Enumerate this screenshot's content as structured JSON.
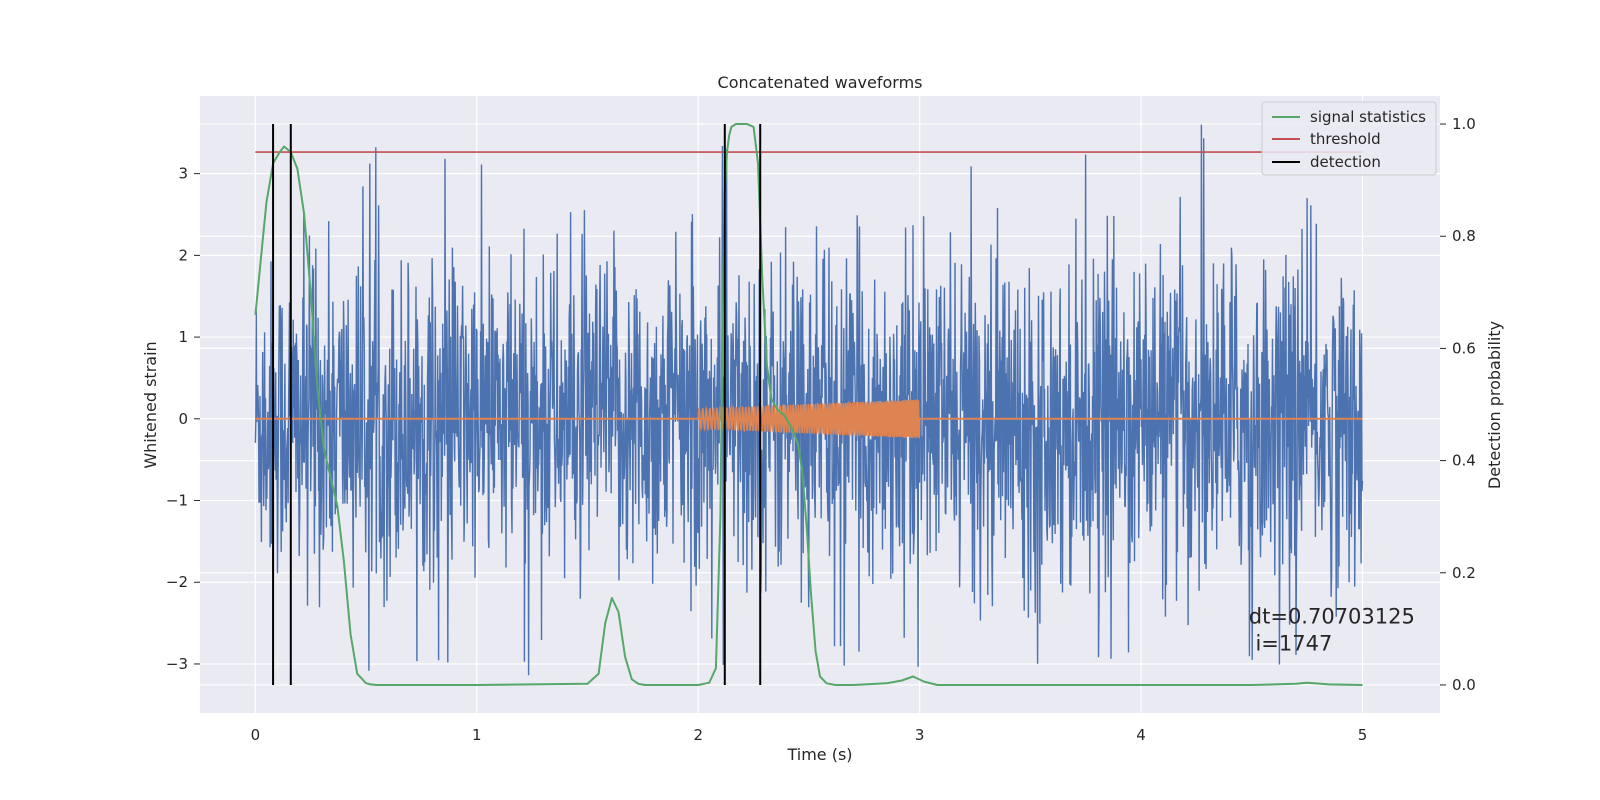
{
  "chart_data": {
    "type": "line",
    "title": "Concatenated waveforms",
    "xlabel": "Time (s)",
    "ylabel": "Whitened strain",
    "y2label": "Detection probability",
    "xlim": [
      -0.25,
      5.35
    ],
    "ylim": [
      -3.6,
      3.95
    ],
    "y2lim": [
      -0.05,
      1.05
    ],
    "x_ticks": [
      0,
      1,
      2,
      3,
      4,
      5
    ],
    "y_ticks": [
      -3,
      -2,
      -1,
      0,
      1,
      2,
      3
    ],
    "y2_ticks": [
      0.0,
      0.2,
      0.4,
      0.6,
      0.8,
      1.0
    ],
    "x_tick_labels": [
      "0",
      "1",
      "2",
      "3",
      "4",
      "5"
    ],
    "y_tick_labels": [
      "−3",
      "−2",
      "−1",
      "0",
      "1",
      "2",
      "3"
    ],
    "y2_tick_labels": [
      "0.0",
      "0.2",
      "0.4",
      "0.6",
      "0.8",
      "1.0"
    ],
    "grid": true,
    "legend_position": "top-right",
    "colors": {
      "strain": "#4c72b0",
      "injection": "#dd8452",
      "statistics": "#55a868",
      "threshold": "#c44e52",
      "detection": "#000000",
      "background": "#eaeaf2",
      "grid": "#ffffff"
    },
    "series": [
      {
        "name": "",
        "kind": "noise",
        "axis": "left",
        "x_range": [
          0,
          5
        ],
        "core_amplitude": 1.0,
        "peak_high": 3.6,
        "peak_low": -2.95
      },
      {
        "name": "",
        "kind": "chirp",
        "axis": "left",
        "x_range": [
          2.0,
          3.0
        ],
        "amplitude_start": 0.12,
        "amplitude_end": 0.24,
        "flat_range": [
          0,
          5
        ]
      },
      {
        "name": "signal statistics",
        "kind": "line",
        "axis": "right",
        "x": [
          0.0,
          0.02,
          0.05,
          0.08,
          0.11,
          0.13,
          0.16,
          0.19,
          0.22,
          0.25,
          0.28,
          0.31,
          0.34,
          0.37,
          0.4,
          0.43,
          0.46,
          0.5,
          0.52,
          0.55,
          0.6,
          1.0,
          1.5,
          1.55,
          1.58,
          1.61,
          1.64,
          1.67,
          1.7,
          1.73,
          1.76,
          1.8,
          2.0,
          2.05,
          2.08,
          2.1,
          2.11,
          2.12,
          2.13,
          2.14,
          2.15,
          2.17,
          2.19,
          2.22,
          2.25,
          2.27,
          2.29,
          2.31,
          2.33,
          2.36,
          2.39,
          2.42,
          2.45,
          2.47,
          2.49,
          2.51,
          2.53,
          2.55,
          2.58,
          2.62,
          2.7,
          2.85,
          2.92,
          2.97,
          3.02,
          3.08,
          3.2,
          4.0,
          4.5,
          4.7,
          4.75,
          4.85,
          5.0
        ],
        "y": [
          0.66,
          0.74,
          0.86,
          0.93,
          0.95,
          0.96,
          0.95,
          0.92,
          0.84,
          0.7,
          0.53,
          0.42,
          0.37,
          0.32,
          0.22,
          0.09,
          0.02,
          0.003,
          0.001,
          0.0,
          0.0,
          0.0,
          0.002,
          0.02,
          0.11,
          0.155,
          0.13,
          0.05,
          0.01,
          0.002,
          0.0,
          0.0,
          0.0,
          0.004,
          0.03,
          0.3,
          0.65,
          0.88,
          0.95,
          0.98,
          0.995,
          1.0,
          1.0,
          1.0,
          0.995,
          0.93,
          0.72,
          0.57,
          0.51,
          0.49,
          0.48,
          0.46,
          0.43,
          0.38,
          0.28,
          0.16,
          0.06,
          0.015,
          0.003,
          0.0,
          0.0,
          0.003,
          0.008,
          0.015,
          0.006,
          0.0,
          0.0,
          0.0,
          0.0,
          0.002,
          0.004,
          0.001,
          0.0
        ]
      },
      {
        "name": "threshold",
        "kind": "hline",
        "axis": "right",
        "x_range": [
          0,
          5
        ],
        "y": 0.95
      },
      {
        "name": "detection",
        "kind": "vlines",
        "axis": "right",
        "x": [
          0.08,
          0.16,
          2.12,
          2.28
        ],
        "y_range": [
          0.0,
          1.0
        ]
      }
    ],
    "annotation": {
      "line1": "dt=0.70703125",
      "line2": " i=1747",
      "x": 4.5,
      "y": 0.11
    }
  }
}
